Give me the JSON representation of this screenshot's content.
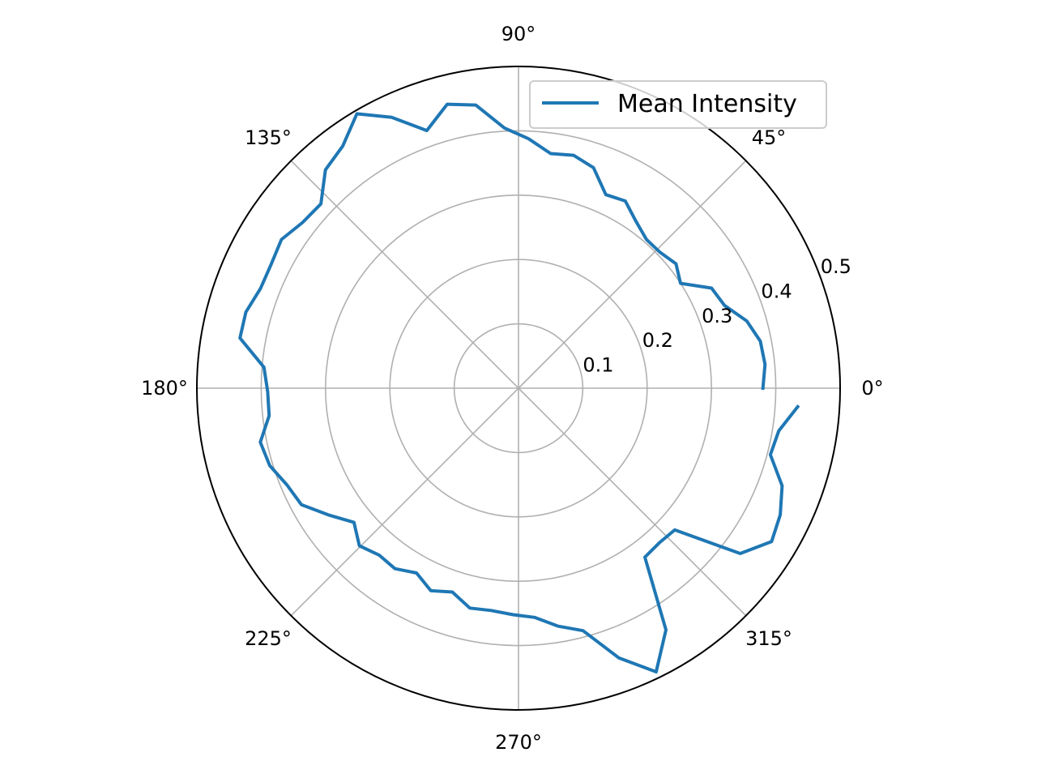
{
  "chart_data": {
    "type": "line",
    "projection": "polar",
    "title": "",
    "theta_unit": "degrees",
    "theta_ticks": [
      0,
      45,
      90,
      135,
      180,
      225,
      270,
      315
    ],
    "theta_tick_labels": [
      "0°",
      "45°",
      "90°",
      "135°",
      "180°",
      "225°",
      "270°",
      "315°"
    ],
    "r_ticks": [
      0.1,
      0.2,
      0.3,
      0.4,
      0.5
    ],
    "r_tick_labels": [
      "0.1",
      "0.2",
      "0.3",
      "0.4",
      "0.5"
    ],
    "rlim": [
      0,
      0.5
    ],
    "grid": true,
    "legend_position": "top-right",
    "series": [
      {
        "name": "Mean Intensity",
        "color": "#1f77b4",
        "theta": [
          0.0,
          5.5,
          11.0,
          16.4,
          21.9,
          27.4,
          32.9,
          38.3,
          43.8,
          49.3,
          54.8,
          60.3,
          65.7,
          71.2,
          76.7,
          82.2,
          87.7,
          93.1,
          98.6,
          104.1,
          109.6,
          115.1,
          120.5,
          126.0,
          131.5,
          137.0,
          142.5,
          147.9,
          153.4,
          158.9,
          164.4,
          169.8,
          175.3,
          180.8,
          186.3,
          191.8,
          197.3,
          202.7,
          208.2,
          213.7,
          219.2,
          224.7,
          230.1,
          235.6,
          241.1,
          246.6,
          252.0,
          257.5,
          263.0,
          268.5,
          274.0,
          279.5,
          284.9,
          290.4,
          295.9,
          301.4,
          306.8,
          312.3,
          317.8,
          323.3,
          328.8,
          334.2,
          339.7,
          345.2,
          350.7,
          356.2
        ],
        "r": [
          0.38,
          0.385,
          0.383,
          0.37,
          0.345,
          0.338,
          0.3,
          0.312,
          0.305,
          0.305,
          0.317,
          0.335,
          0.33,
          0.362,
          0.372,
          0.368,
          0.388,
          0.405,
          0.445,
          0.455,
          0.425,
          0.465,
          0.495,
          0.465,
          0.453,
          0.42,
          0.423,
          0.435,
          0.43,
          0.43,
          0.44,
          0.44,
          0.397,
          0.39,
          0.39,
          0.41,
          0.405,
          0.39,
          0.383,
          0.355,
          0.33,
          0.348,
          0.338,
          0.34,
          0.328,
          0.343,
          0.333,
          0.35,
          0.348,
          0.352,
          0.357,
          0.375,
          0.39,
          0.447,
          0.49,
          0.44,
          0.328,
          0.325,
          0.328,
          0.43,
          0.46,
          0.452,
          0.437,
          0.405,
          0.41,
          0.435
        ]
      }
    ]
  }
}
